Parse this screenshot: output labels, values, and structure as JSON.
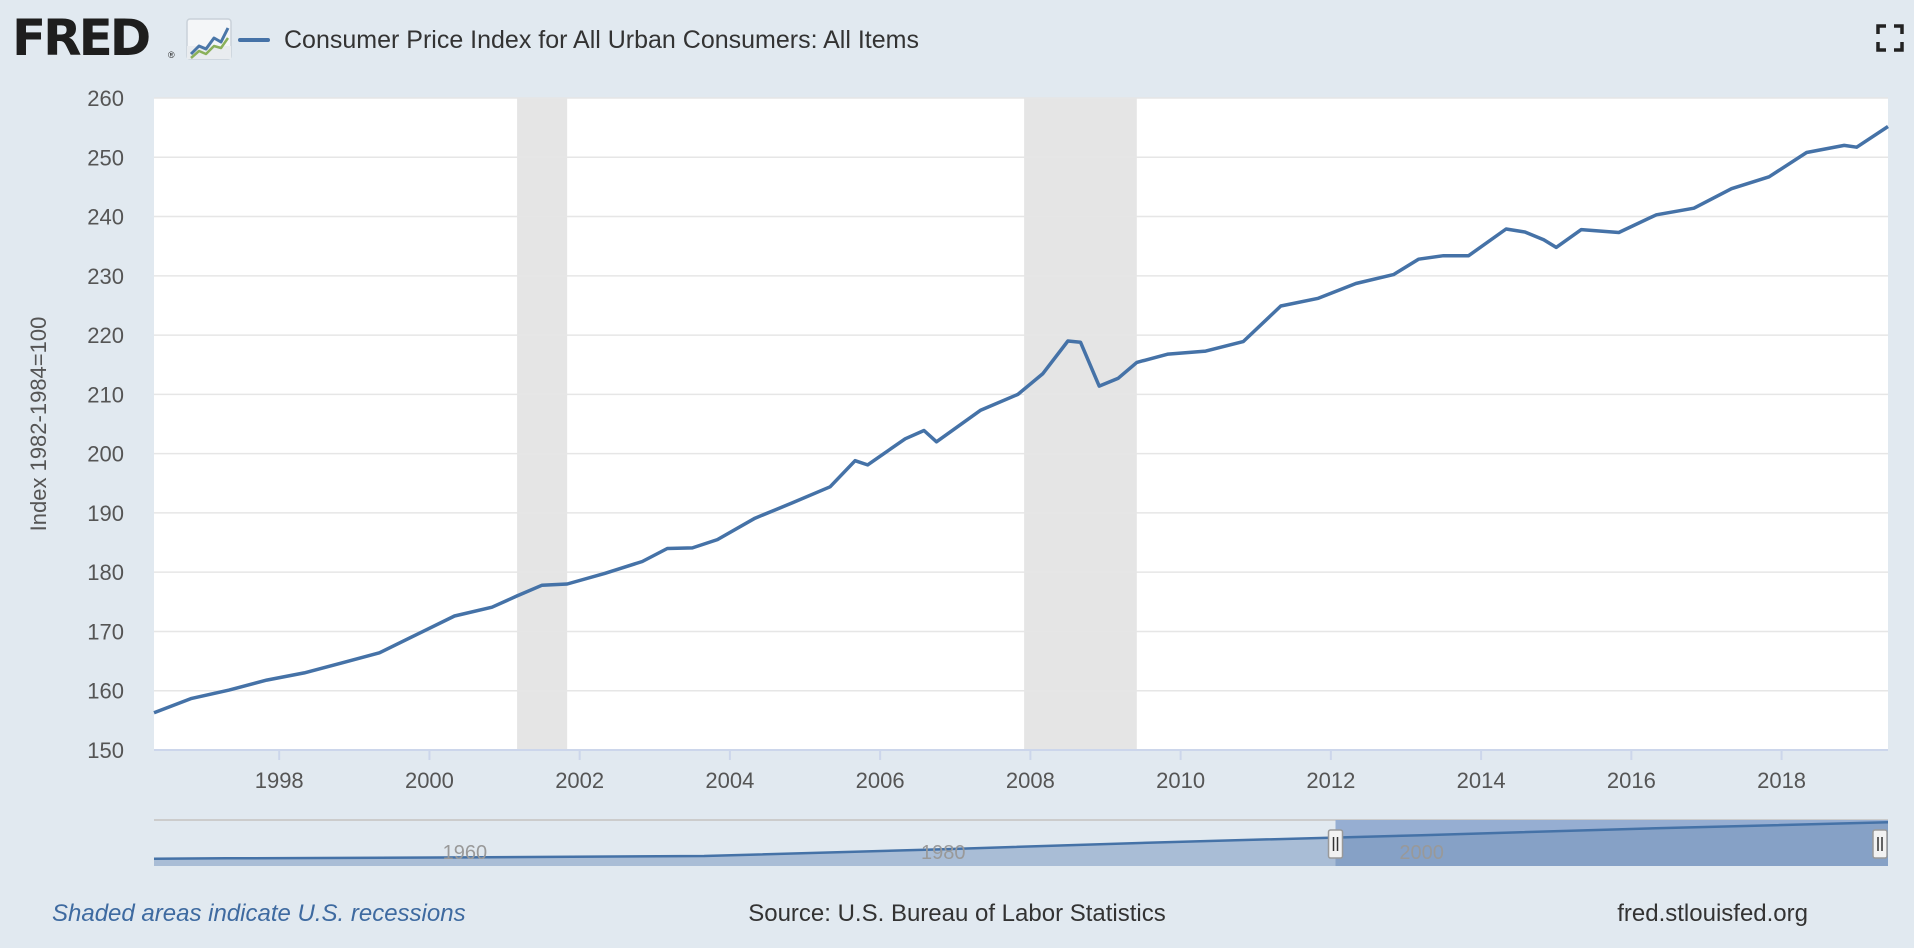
{
  "brand": {
    "name": "FRED",
    "registered": "®"
  },
  "legend": {
    "series_label": "Consumer Price Index for All Urban Consumers: All Items"
  },
  "colors": {
    "series": "#4572a7",
    "recession": "#e5e5e5",
    "background": "#e1e9f0",
    "plot": "#ffffff",
    "grid": "#e6e6e6",
    "navigator_fill": "#a9bdd6",
    "navigator_selected": "#c2d2e8"
  },
  "footer": {
    "note": "Shaded areas indicate U.S. recessions",
    "source": "Source: U.S. Bureau of Labor Statistics",
    "site": "fred.stlouisfed.org"
  },
  "chart_data": {
    "type": "line",
    "title": "",
    "xlabel": "",
    "ylabel": "Index 1982-1984=100",
    "xlim": [
      "1996-05-01",
      "2019-06-01"
    ],
    "ylim": [
      150,
      260
    ],
    "yticks": [
      150,
      160,
      170,
      180,
      190,
      200,
      210,
      220,
      230,
      240,
      250,
      260
    ],
    "xticks": [
      "1998",
      "2000",
      "2002",
      "2004",
      "2006",
      "2008",
      "2010",
      "2012",
      "2014",
      "2016",
      "2018"
    ],
    "grid": true,
    "recessions": [
      {
        "start": "2001-03-01",
        "end": "2001-11-01"
      },
      {
        "start": "2007-12-01",
        "end": "2009-06-01"
      }
    ],
    "series": [
      {
        "name": "Consumer Price Index for All Urban Consumers: All Items",
        "x": [
          "1996-05-01",
          "1996-11-01",
          "1997-05-01",
          "1997-11-01",
          "1998-05-01",
          "1998-11-01",
          "1999-05-01",
          "1999-11-01",
          "2000-05-01",
          "2000-11-01",
          "2001-03-01",
          "2001-07-01",
          "2001-11-01",
          "2002-05-01",
          "2002-11-01",
          "2003-03-01",
          "2003-07-01",
          "2003-11-01",
          "2004-05-01",
          "2004-11-01",
          "2005-05-01",
          "2005-09-01",
          "2005-11-01",
          "2006-05-01",
          "2006-08-01",
          "2006-10-01",
          "2007-05-01",
          "2007-11-01",
          "2008-03-01",
          "2008-07-01",
          "2008-09-01",
          "2008-12-01",
          "2009-03-01",
          "2009-06-01",
          "2009-11-01",
          "2010-05-01",
          "2010-11-01",
          "2011-05-01",
          "2011-11-01",
          "2012-05-01",
          "2012-11-01",
          "2013-03-01",
          "2013-07-01",
          "2013-11-01",
          "2014-05-01",
          "2014-08-01",
          "2014-11-01",
          "2015-01-01",
          "2015-05-01",
          "2015-11-01",
          "2016-05-01",
          "2016-11-01",
          "2017-05-01",
          "2017-11-01",
          "2018-05-01",
          "2018-11-01",
          "2019-01-01",
          "2019-06-01"
        ],
        "values": [
          156.3,
          158.7,
          160.1,
          161.8,
          163.0,
          164.7,
          166.4,
          169.5,
          172.6,
          174.1,
          176.0,
          177.8,
          178.0,
          179.8,
          181.8,
          184.0,
          184.1,
          185.5,
          189.1,
          191.7,
          194.4,
          198.8,
          198.1,
          202.5,
          203.9,
          202.0,
          207.3,
          210.0,
          213.5,
          219.0,
          218.8,
          211.4,
          212.7,
          215.4,
          216.8,
          217.3,
          218.9,
          224.9,
          226.2,
          228.7,
          230.2,
          232.8,
          233.4,
          233.4,
          237.9,
          237.4,
          236.1,
          234.8,
          237.8,
          237.3,
          240.3,
          241.4,
          244.7,
          246.7,
          250.8,
          252.0,
          251.7,
          255.2
        ]
      }
    ]
  },
  "navigator": {
    "labels": [
      "1960",
      "1980",
      "2000"
    ],
    "x": [
      1947,
      1950,
      1960,
      1970,
      1980,
      1990,
      2000,
      2010,
      2019.5
    ],
    "values": [
      21.5,
      24,
      29.6,
      38.8,
      82.4,
      130.7,
      172.2,
      218.1,
      255.2
    ],
    "xlim": [
      1947,
      2019.5
    ],
    "selection": [
      1996.4,
      2019.5
    ]
  }
}
